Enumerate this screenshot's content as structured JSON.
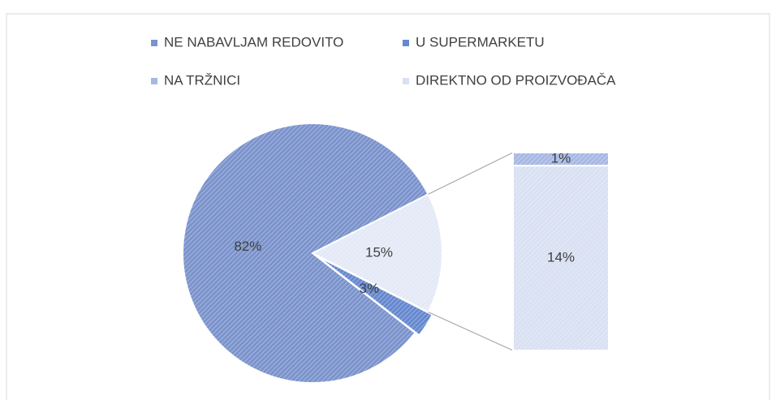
{
  "chart_data": {
    "type": "pie-of-bar",
    "categories": [
      "NE NABAVLJAM REDOVITO",
      "U SUPERMARKETU",
      "NA TRŽNICI",
      "DIREKTNO OD PROIZVOĐAČA"
    ],
    "values": [
      82,
      3,
      1,
      14
    ],
    "value_labels": [
      "82%",
      "3%",
      "1%",
      "14%"
    ],
    "colors": [
      "#7b93cc",
      "#6688cf",
      "#a7b8e3",
      "#d8e0f2"
    ],
    "pie_count": 2,
    "other_value": 15,
    "other_label": "15%",
    "other_color": "#e3e9f6",
    "legend": "top"
  }
}
